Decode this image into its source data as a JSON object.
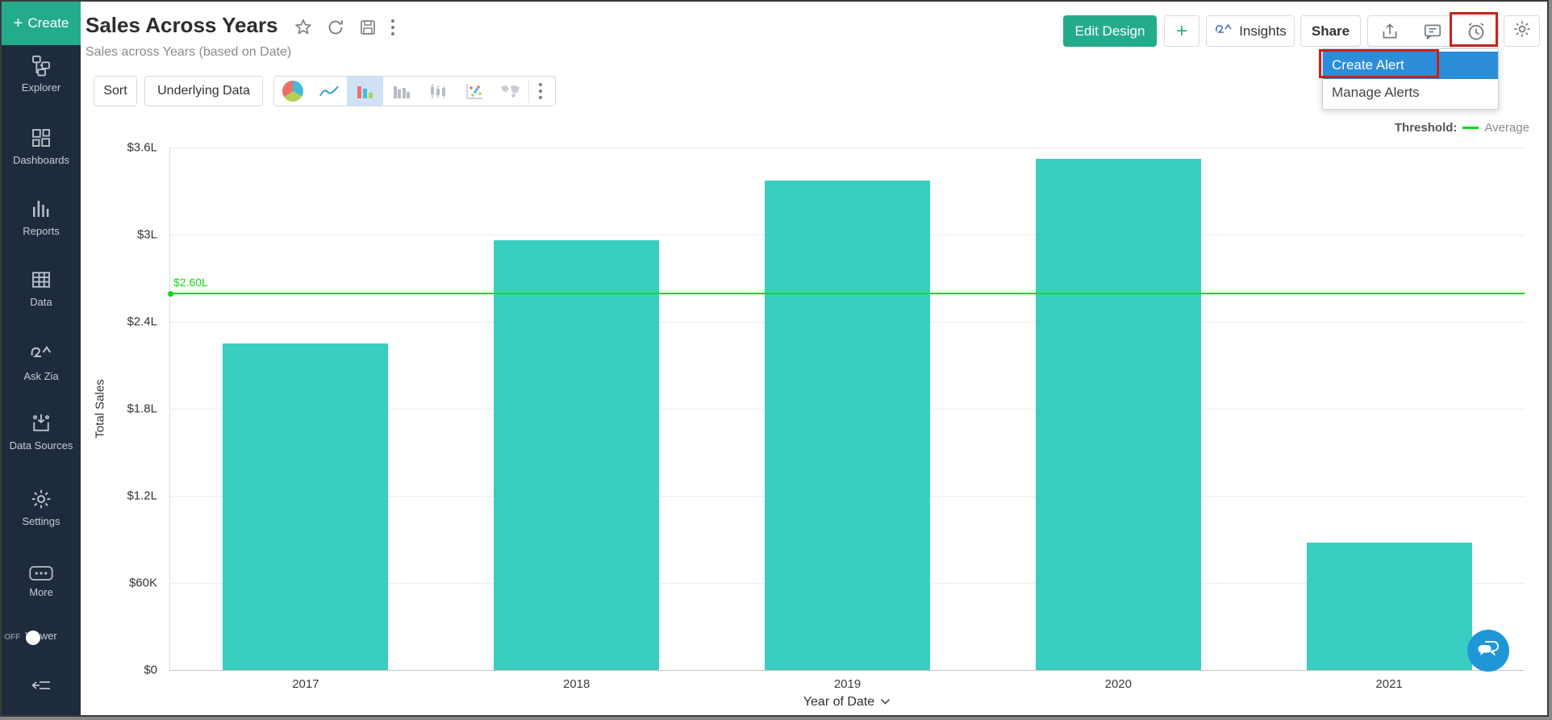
{
  "sidebar": {
    "create_plus": "+",
    "create_label": "Create",
    "items": [
      {
        "label": "Explorer"
      },
      {
        "label": "Dashboards"
      },
      {
        "label": "Reports"
      },
      {
        "label": "Data"
      },
      {
        "label": "Ask Zia"
      },
      {
        "label": "Data Sources"
      },
      {
        "label": "Settings"
      },
      {
        "label": "More"
      },
      {
        "label": "Viewer",
        "toggle": "OFF"
      }
    ]
  },
  "header": {
    "title": "Sales Across Years",
    "subtitle": "Sales across Years (based on Date)",
    "actions": {
      "edit_design": "Edit Design",
      "plus": "+",
      "insights": "Insights",
      "share": "Share"
    }
  },
  "menu": {
    "items": [
      {
        "label": "Create Alert",
        "selected": true
      },
      {
        "label": "Manage Alerts",
        "selected": false
      }
    ]
  },
  "toolbar": {
    "sort": "Sort",
    "underlying_data": "Underlying Data"
  },
  "icons": {
    "star": "☆",
    "refresh": "⟳",
    "save": "floppy-disk",
    "kebab": "⋮",
    "export": "box-arrow-up",
    "comment": "speech-bubble",
    "alert": "alarm-clock",
    "gear": "⚙",
    "chevron_down": "⌄",
    "chat": "double-speech-bubble"
  },
  "colors": {
    "accent_green": "#24ab8c",
    "menu_highlight_blue": "#2b8dd9",
    "annotation_red": "#c6221c",
    "sidebar_bg": "#1e2b3c",
    "chat_blue": "#1f97d7"
  },
  "chart_data": {
    "type": "bar",
    "title": "Sales Across Years",
    "categories": [
      "2017",
      "2018",
      "2019",
      "2020",
      "2021"
    ],
    "values": [
      225000,
      296000,
      337000,
      352000,
      88000
    ],
    "xlabel": "Year of Date",
    "ylabel": "Total Sales",
    "ylim": [
      0,
      360000
    ],
    "yticks": [
      {
        "value": 0,
        "label": "$0"
      },
      {
        "value": 60000,
        "label": "$60K"
      },
      {
        "value": 120000,
        "label": "$1.2L"
      },
      {
        "value": 180000,
        "label": "$1.8L"
      },
      {
        "value": 240000,
        "label": "$2.4L"
      },
      {
        "value": 300000,
        "label": "$3L"
      },
      {
        "value": 360000,
        "label": "$3.6L"
      }
    ],
    "bar_color": "#39cec1",
    "grid": true,
    "legend_position": "top-right",
    "threshold": {
      "value": 260000,
      "label": "$2.60L",
      "legend_title": "Threshold:",
      "legend_label": "Average",
      "color": "#12d912"
    }
  }
}
